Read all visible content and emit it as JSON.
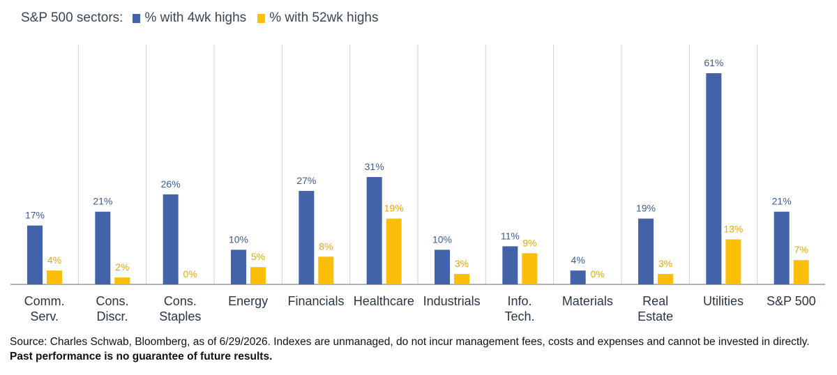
{
  "legend": {
    "prefix": "S&P 500 sectors:",
    "series_1": "% with 4wk highs",
    "series_2": "% with 52wk highs"
  },
  "colors": {
    "series_1": "#4263a8",
    "series_2": "#fbbf0a",
    "label_1": "#3d5a94",
    "label_2": "#e8a900",
    "grid": "#cfcfcf",
    "axis": "#999999"
  },
  "chart_data": {
    "type": "bar",
    "categories": [
      [
        "Comm.",
        "Serv."
      ],
      [
        "Cons.",
        "Discr."
      ],
      [
        "Cons.",
        "Staples"
      ],
      [
        "Energy"
      ],
      [
        "Financials"
      ],
      [
        "Healthcare"
      ],
      [
        "Industrials"
      ],
      [
        "Info.",
        "Tech."
      ],
      [
        "Materials"
      ],
      [
        "Real",
        "Estate"
      ],
      [
        "Utilities"
      ],
      [
        "S&P 500"
      ]
    ],
    "series": [
      {
        "name": "% with 4wk highs",
        "values": [
          17,
          21,
          26,
          10,
          27,
          31,
          10,
          11,
          4,
          19,
          61,
          21
        ]
      },
      {
        "name": "% with 52wk highs",
        "values": [
          4,
          2,
          0,
          5,
          8,
          19,
          3,
          9,
          0,
          3,
          13,
          7
        ]
      }
    ],
    "value_suffix": "%",
    "ylim": [
      0,
      70
    ],
    "grid": "vertical separators",
    "legend_position": "top-left"
  },
  "footer": {
    "source": "Source: Charles Schwab, Bloomberg, as of 6/29/2026.  Indexes are unmanaged, do not incur management fees, costs and expenses and cannot be invested in directly. ",
    "disclaimer": "Past performance is no guarantee of future results."
  }
}
